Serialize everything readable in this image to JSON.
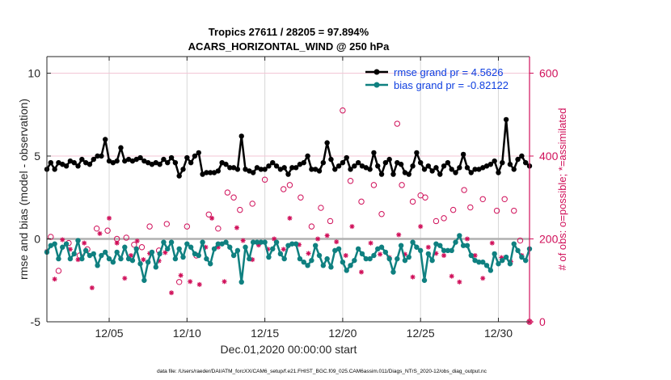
{
  "chart_data": {
    "type": "line",
    "title": [
      "Tropics 27611 / 28205 = 97.894%",
      "ACARS_HORIZONTAL_WIND @ 250 hPa"
    ],
    "xlabel": "Dec.01,2020 00:00:00 start",
    "ylabel": "rmse and bias (model - observation)",
    "ylabel_right": "# of obs: o=possible; *=assimilated",
    "xlim": [
      1,
      32
    ],
    "ylim": [
      -5,
      11
    ],
    "ylim_right": [
      0,
      640
    ],
    "x_ticks": [
      5,
      10,
      15,
      20,
      25,
      30
    ],
    "x_tick_labels": [
      "12/05",
      "12/10",
      "12/15",
      "12/20",
      "12/25",
      "12/30"
    ],
    "y_ticks": [
      -5,
      0,
      5,
      10
    ],
    "y_tick_labels": [
      "-5",
      "0",
      "5",
      "10"
    ],
    "y_right_ticks": [
      0,
      200,
      400,
      600
    ],
    "y_right_tick_labels": [
      "0",
      "200",
      "400",
      "600"
    ],
    "grid": true,
    "legend_position": "top-right",
    "x_start": 1.0,
    "x_step": 0.25,
    "series": [
      {
        "name": "rmse grand pr = 4.5626",
        "color": "#000000",
        "axis": "left",
        "values": [
          4.2,
          4.6,
          4.2,
          4.6,
          4.5,
          4.4,
          4.7,
          4.6,
          4.4,
          4.8,
          4.6,
          4.5,
          4.8,
          5.0,
          5.0,
          6.0,
          4.7,
          4.6,
          4.7,
          5.5,
          4.7,
          4.8,
          4.7,
          4.8,
          4.9,
          4.7,
          4.6,
          4.5,
          4.6,
          4.5,
          4.8,
          4.6,
          4.9,
          4.6,
          3.8,
          4.2,
          4.9,
          4.6,
          5.0,
          5.2,
          3.9,
          4.0,
          4.0,
          4.0,
          4.1,
          4.6,
          4.5,
          4.3,
          4.3,
          4.2,
          6.2,
          4.2,
          4.1,
          4.0,
          4.3,
          4.2,
          4.2,
          4.4,
          4.6,
          4.4,
          4.2,
          4.3,
          3.9,
          4.3,
          4.3,
          4.5,
          4.6,
          5.0,
          4.2,
          4.2,
          4.1,
          4.6,
          5.8,
          4.8,
          4.2,
          4.4,
          4.6,
          4.9,
          4.2,
          4.4,
          4.6,
          4.4,
          4.3,
          4.2,
          5.2,
          4.4,
          3.9,
          4.6,
          4.8,
          3.9,
          4.6,
          4.5,
          4.0,
          3.9,
          4.4,
          5.2,
          4.6,
          4.2,
          4.4,
          4.1,
          4.3,
          3.9,
          4.4,
          4.6,
          4.2,
          4.0,
          4.3,
          5.1,
          4.3,
          4.0,
          4.2,
          4.2,
          4.3,
          4.4,
          4.5,
          4.7,
          4.0,
          4.6,
          7.2,
          4.5,
          4.2,
          4.8,
          5.0,
          4.6,
          4.4,
          4.3,
          4.4,
          4.7,
          4.7,
          4.2,
          5.0,
          4.9,
          4.5,
          4.3,
          4.3,
          4.1,
          4.3,
          4.2,
          4.4,
          4.4,
          4.2,
          4.6,
          4.5,
          4.3,
          5.0,
          4.4,
          4.7,
          4.6,
          5.8,
          4.5,
          5.3,
          4.7,
          5.0,
          4.5,
          4.4,
          4.4,
          4.1,
          4.2,
          4.0,
          3.9,
          4.2,
          4.0,
          5.0,
          4.1,
          4.7,
          5.2,
          4.2
        ]
      },
      {
        "name": "bias grand pr = -0.82122",
        "color": "#0f8080",
        "axis": "left",
        "values": [
          -0.8,
          -0.4,
          -0.3,
          -1.2,
          -0.5,
          -0.3,
          -1.2,
          -0.9,
          -0.1,
          -1.2,
          -0.7,
          -1.0,
          -0.9,
          -1.6,
          -1.0,
          -0.8,
          -1.2,
          -1.4,
          -0.8,
          -1.2,
          -0.5,
          -1.2,
          -1.3,
          -0.6,
          -1.5,
          -2.5,
          -1.4,
          -0.8,
          -1.7,
          -0.9,
          -0.2,
          -0.6,
          -0.2,
          -1.2,
          -0.6,
          -1.1,
          -0.3,
          -0.5,
          -0.9,
          -1.0,
          -0.2,
          -1.2,
          -1.5,
          -0.6,
          -0.3,
          -0.3,
          -0.2,
          -0.5,
          -1.0,
          -0.7,
          -2.6,
          -0.5,
          -1.2,
          -0.2,
          -0.2,
          -0.2,
          -0.2,
          -1.1,
          -0.6,
          -0.2,
          -0.9,
          -1.2,
          -0.4,
          -0.3,
          -0.3,
          -1.2,
          -1.4,
          -1.6,
          -1.3,
          -0.4,
          -1.0,
          -1.6,
          -1.2,
          -1.7,
          -0.7,
          -0.6,
          -1.4,
          -1.9,
          -1.6,
          -1.3,
          -0.6,
          -0.9,
          -1.2,
          -1.2,
          -1.0,
          -0.6,
          -0.5,
          -0.8,
          -1.2,
          -2.0,
          -1.2,
          -0.4,
          -1.3,
          -1.1,
          -0.2,
          -0.5,
          -0.7,
          -2.5,
          -0.9,
          -1.3,
          -0.3,
          -0.4,
          -0.7,
          -0.7,
          -0.7,
          -0.2,
          0.2,
          -0.4,
          -0.4,
          -1.0,
          -1.3,
          -1.4,
          -1.4,
          -1.6,
          -1.9,
          -0.9,
          -1.5,
          -1.3,
          -1.1,
          -1.5,
          -0.3,
          -0.7,
          -1.1,
          -1.3,
          -0.6,
          -0.9,
          -1.4,
          -0.9,
          -1.4,
          -1.3,
          -1.0,
          -1.1,
          -1.2,
          -1.6,
          -0.9,
          -0.6,
          -0.2,
          -0.2,
          0.2,
          -1.4,
          -0.6,
          -2.1,
          -1.7,
          -1.6,
          -1.2,
          -0.8,
          -0.2,
          -0.6,
          -1.2,
          -1.4,
          -0.9,
          -2.0,
          -1.3,
          -1.7,
          -0.8,
          -1.4,
          -2.3,
          -1.1,
          -1.2,
          -0.9,
          -1.7,
          -1.4,
          -0.2,
          -0.6,
          -1.1,
          -1.7,
          -0.6,
          -0.8,
          -2.5,
          -1.2
        ]
      },
      {
        "name": "possible obs (o)",
        "color": "#d0105a",
        "axis": "right",
        "marker": "circle",
        "points": [
          [
            1.25,
            205
          ],
          [
            1.75,
            123
          ],
          [
            2.4,
            190
          ],
          [
            3.1,
            160
          ],
          [
            3.6,
            175
          ],
          [
            4.2,
            225
          ],
          [
            4.9,
            220
          ],
          [
            5.5,
            200
          ],
          [
            6.1,
            203
          ],
          [
            6.6,
            186
          ],
          [
            7.1,
            180
          ],
          [
            7.6,
            230
          ],
          [
            8.2,
            172
          ],
          [
            8.7,
            236
          ],
          [
            9.5,
            96
          ],
          [
            10.0,
            230
          ],
          [
            10.6,
            160
          ],
          [
            11.4,
            259
          ],
          [
            12.0,
            225
          ],
          [
            12.6,
            312
          ],
          [
            13.0,
            300
          ],
          [
            13.4,
            270
          ],
          [
            14.2,
            285
          ],
          [
            15.0,
            343
          ],
          [
            16.2,
            320
          ],
          [
            16.6,
            330
          ],
          [
            17.3,
            300
          ],
          [
            18.0,
            230
          ],
          [
            18.6,
            275
          ],
          [
            19.2,
            243
          ],
          [
            20.0,
            510
          ],
          [
            20.5,
            340
          ],
          [
            21.2,
            290
          ],
          [
            22.0,
            330
          ],
          [
            22.5,
            260
          ],
          [
            23.5,
            478
          ],
          [
            23.8,
            330
          ],
          [
            24.5,
            290
          ],
          [
            25.0,
            305
          ],
          [
            25.3,
            300
          ],
          [
            26.0,
            243
          ],
          [
            26.5,
            250
          ],
          [
            27.1,
            270
          ],
          [
            27.8,
            318
          ],
          [
            28.2,
            276
          ],
          [
            29.0,
            296
          ],
          [
            29.9,
            268
          ],
          [
            30.4,
            296
          ],
          [
            31.0,
            268
          ],
          [
            31.4,
            196
          ],
          [
            32.0,
            0
          ]
        ]
      },
      {
        "name": "assimilated obs (*)",
        "color": "#d0105a",
        "axis": "right",
        "marker": "asterisk",
        "points": [
          [
            1.0,
            170
          ],
          [
            1.5,
            103
          ],
          [
            2.0,
            198
          ],
          [
            2.5,
            175
          ],
          [
            3.0,
            150
          ],
          [
            3.4,
            190
          ],
          [
            3.9,
            82
          ],
          [
            4.4,
            213
          ],
          [
            5.0,
            250
          ],
          [
            5.5,
            190
          ],
          [
            6.0,
            105
          ],
          [
            6.4,
            160
          ],
          [
            6.8,
            195
          ],
          [
            7.2,
            150
          ],
          [
            7.6,
            165
          ],
          [
            8.2,
            147
          ],
          [
            8.6,
            167
          ],
          [
            9.0,
            70
          ],
          [
            9.6,
            112
          ],
          [
            10.2,
            97
          ],
          [
            10.8,
            90
          ],
          [
            11.2,
            180
          ],
          [
            11.6,
            250
          ],
          [
            12.0,
            180
          ],
          [
            12.4,
            97
          ],
          [
            13.2,
            227
          ],
          [
            13.6,
            196
          ],
          [
            14.2,
            150
          ],
          [
            14.6,
            185
          ],
          [
            15.2,
            175
          ],
          [
            15.6,
            200
          ],
          [
            16.2,
            175
          ],
          [
            16.6,
            250
          ],
          [
            17.2,
            186
          ],
          [
            17.8,
            165
          ],
          [
            18.4,
            200
          ],
          [
            19.0,
            208
          ],
          [
            19.6,
            193
          ],
          [
            20.2,
            160
          ],
          [
            20.6,
            230
          ],
          [
            21.2,
            120
          ],
          [
            21.8,
            190
          ],
          [
            22.4,
            163
          ],
          [
            23.0,
            155
          ],
          [
            23.6,
            210
          ],
          [
            24.0,
            163
          ],
          [
            24.5,
            108
          ],
          [
            25.0,
            230
          ],
          [
            25.5,
            180
          ],
          [
            26.0,
            165
          ],
          [
            26.5,
            160
          ],
          [
            27.0,
            110
          ],
          [
            27.5,
            96
          ],
          [
            28.0,
            200
          ],
          [
            28.5,
            160
          ],
          [
            29.0,
            105
          ],
          [
            29.6,
            190
          ],
          [
            30.2,
            155
          ],
          [
            30.8,
            145
          ],
          [
            31.5,
            160
          ],
          [
            32.0,
            0
          ]
        ]
      }
    ]
  },
  "footer": "data file: /Users/raeder/DAI/ATM_forcXX/CAM6_setup/f.e21.FHIST_BGC.f09_025.CAM6assim.011/Diags_NTrS_2020-12/obs_diag_output.nc"
}
